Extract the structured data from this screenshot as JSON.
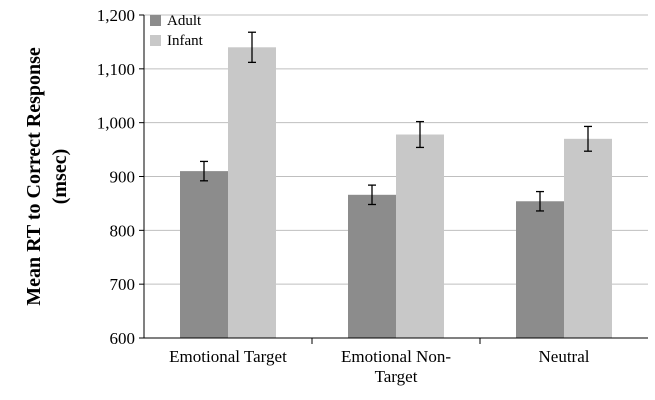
{
  "chart_data": {
    "type": "bar",
    "categories": [
      "Emotional Target",
      "Emotional Non-Target",
      "Neutral"
    ],
    "category_label_lines": [
      [
        "Emotional Target"
      ],
      [
        "Emotional Non-",
        "Target"
      ],
      [
        "Neutral"
      ]
    ],
    "series": [
      {
        "name": "Adult",
        "values": [
          910,
          866,
          854
        ],
        "errors": [
          18,
          18,
          18
        ],
        "color": "#8c8c8c"
      },
      {
        "name": "Infant",
        "values": [
          1140,
          978,
          970
        ],
        "errors": [
          28,
          24,
          23
        ],
        "color": "#c8c8c8"
      }
    ],
    "ylabel_lines": [
      "Mean RT to Correct Response",
      "(msec)"
    ],
    "xlabel": "",
    "ylim": [
      600,
      1200
    ],
    "yticks": [
      600,
      700,
      800,
      900,
      1000,
      1100,
      1200
    ],
    "ytick_labels": [
      "600",
      "700",
      "800",
      "900",
      "1,000",
      "1,100",
      "1,200"
    ],
    "grid": true,
    "legend_position": "top-left"
  }
}
